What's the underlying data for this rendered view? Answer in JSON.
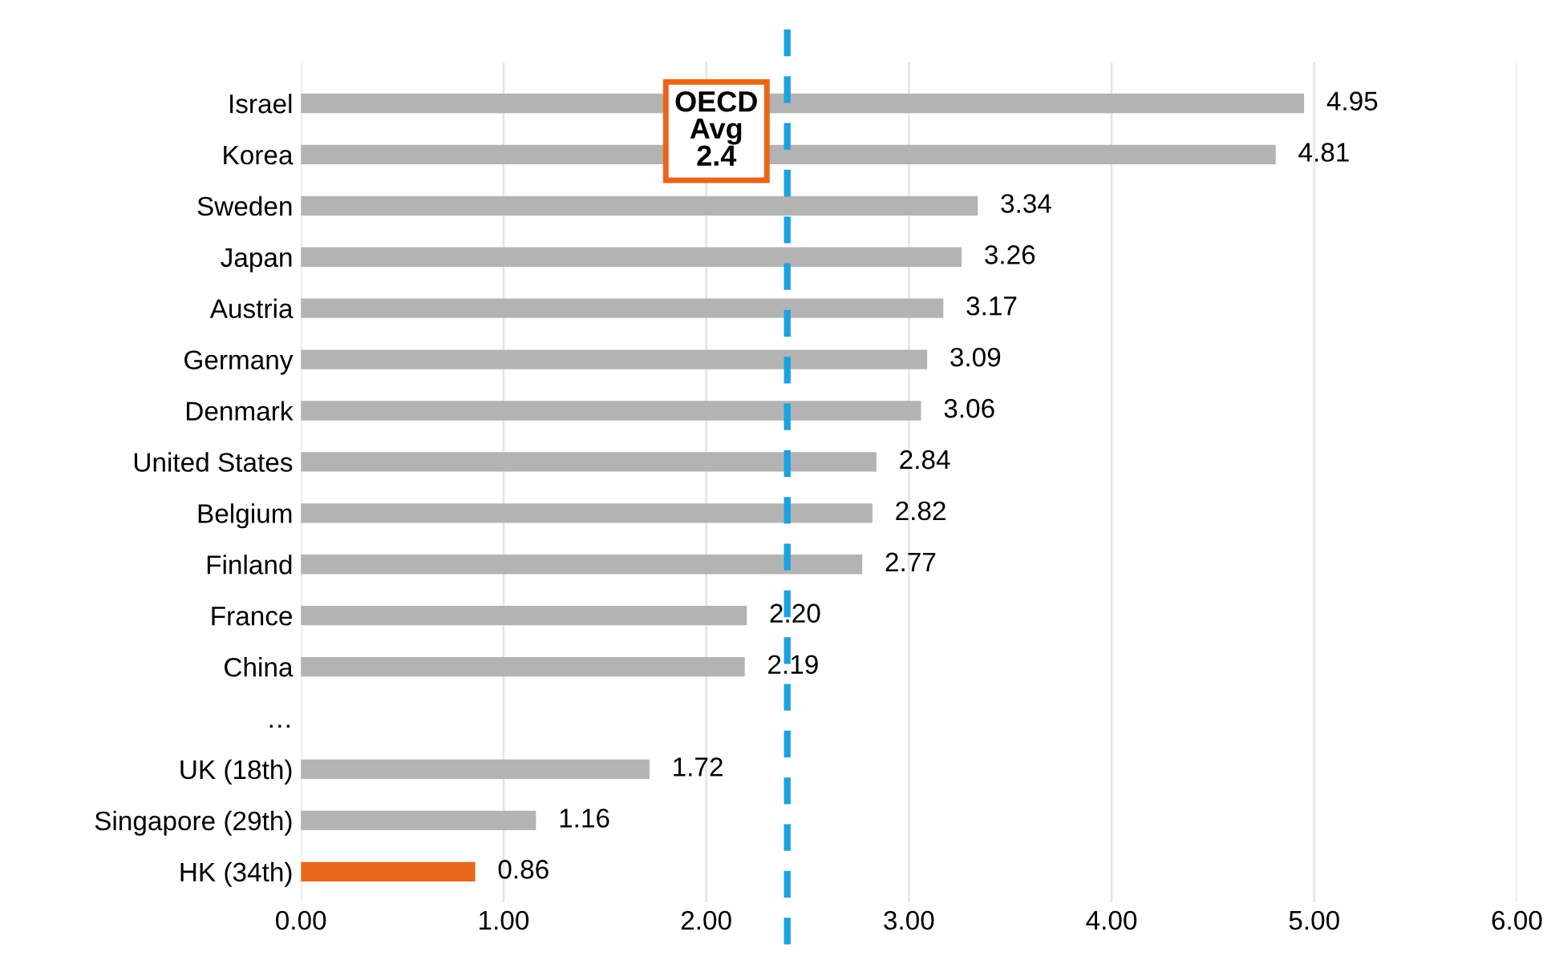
{
  "chart_data": {
    "type": "bar",
    "orientation": "horizontal",
    "categories": [
      "Israel",
      "Korea",
      "Sweden",
      "Japan",
      "Austria",
      "Germany",
      "Denmark",
      "United States",
      "Belgium",
      "Finland",
      "France",
      "China",
      "…",
      "UK (18th)",
      "Singapore (29th)",
      "HK (34th)"
    ],
    "values": [
      4.95,
      4.81,
      3.34,
      3.26,
      3.17,
      3.09,
      3.06,
      2.84,
      2.82,
      2.77,
      2.2,
      2.19,
      null,
      1.72,
      1.16,
      0.86
    ],
    "colors": [
      "#b3b3b3",
      "#b3b3b3",
      "#b3b3b3",
      "#b3b3b3",
      "#b3b3b3",
      "#b3b3b3",
      "#b3b3b3",
      "#b3b3b3",
      "#b3b3b3",
      "#b3b3b3",
      "#b3b3b3",
      "#b3b3b3",
      "#b3b3b3",
      "#b3b3b3",
      "#b3b3b3",
      "#e8661a"
    ],
    "value_labels": [
      "4.95",
      "4.81",
      "3.34",
      "3.26",
      "3.17",
      "3.09",
      "3.06",
      "2.84",
      "2.82",
      "2.77",
      "2.20",
      "2.19",
      null,
      "1.72",
      "1.16",
      "0.86"
    ],
    "xlim": [
      0,
      6
    ],
    "xticks": [
      {
        "value": 0,
        "label": "0.00"
      },
      {
        "value": 1,
        "label": "1.00"
      },
      {
        "value": 2,
        "label": "2.00"
      },
      {
        "value": 3,
        "label": "3.00"
      },
      {
        "value": 4,
        "label": "4.00"
      },
      {
        "value": 5,
        "label": "5.00"
      },
      {
        "value": 6,
        "label": "6.00"
      }
    ],
    "grid": "x",
    "ref_lines": [
      {
        "axis": "x",
        "value": 2.4,
        "label": "OECD\nAvg\n2.4",
        "color": "#1ba1e2",
        "line_style": "dashed"
      }
    ]
  }
}
